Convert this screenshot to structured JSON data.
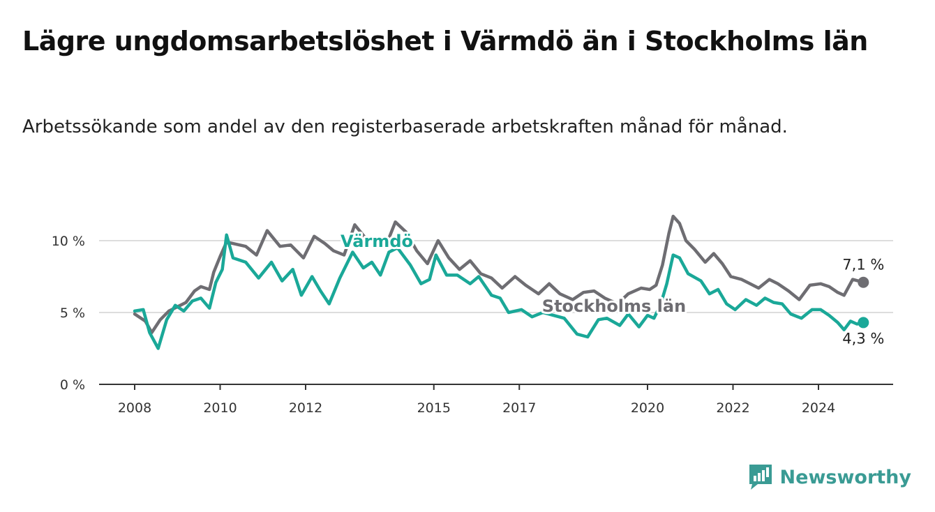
{
  "header": {
    "title": "Lägre ungdomsarbetslöshet i Värmdö än i Stockholms län",
    "subtitle": "Arbetssökande som andel av den registerbaserade arbetskraften månad för månad."
  },
  "brand": {
    "name": "Newsworthy",
    "icon": "newsworthy-logo-icon",
    "color": "#3a9b94"
  },
  "colors": {
    "varmdo": "#1aa898",
    "stockholm": "#6e6d72",
    "grid": "#dddddd",
    "axis": "#333333"
  },
  "chart_data": {
    "type": "line",
    "x_ticks": [
      "2008",
      "2010",
      "2012",
      "2015",
      "2017",
      "2020",
      "2022",
      "2024"
    ],
    "y_ticks": [
      "0 %",
      "5 %",
      "10 %"
    ],
    "ylim": [
      0,
      12
    ],
    "grid": "horizontal",
    "series": [
      {
        "name": "Värmdö",
        "key": "varmdo",
        "end_label": "4,3 %",
        "points": [
          [
            2008.0,
            5.1
          ],
          [
            2008.2,
            5.2
          ],
          [
            2008.35,
            3.6
          ],
          [
            2008.55,
            2.5
          ],
          [
            2008.75,
            4.5
          ],
          [
            2008.95,
            5.5
          ],
          [
            2009.15,
            5.1
          ],
          [
            2009.35,
            5.8
          ],
          [
            2009.55,
            6.0
          ],
          [
            2009.75,
            5.3
          ],
          [
            2009.9,
            7.1
          ],
          [
            2010.05,
            8.0
          ],
          [
            2010.15,
            10.4
          ],
          [
            2010.3,
            8.8
          ],
          [
            2010.6,
            8.5
          ],
          [
            2010.9,
            7.4
          ],
          [
            2011.2,
            8.5
          ],
          [
            2011.45,
            7.2
          ],
          [
            2011.7,
            8.0
          ],
          [
            2011.9,
            6.2
          ],
          [
            2012.15,
            7.5
          ],
          [
            2012.35,
            6.5
          ],
          [
            2012.55,
            5.6
          ],
          [
            2012.8,
            7.4
          ],
          [
            2013.1,
            9.2
          ],
          [
            2013.35,
            8.1
          ],
          [
            2013.55,
            8.5
          ],
          [
            2013.75,
            7.6
          ],
          [
            2013.95,
            9.2
          ],
          [
            2014.15,
            9.5
          ],
          [
            2014.45,
            8.3
          ],
          [
            2014.7,
            7.0
          ],
          [
            2014.9,
            7.3
          ],
          [
            2015.05,
            9.0
          ],
          [
            2015.3,
            7.6
          ],
          [
            2015.55,
            7.6
          ],
          [
            2015.85,
            7.0
          ],
          [
            2016.05,
            7.5
          ],
          [
            2016.35,
            6.2
          ],
          [
            2016.55,
            6.0
          ],
          [
            2016.75,
            5.0
          ],
          [
            2017.05,
            5.2
          ],
          [
            2017.3,
            4.7
          ],
          [
            2017.55,
            5.0
          ],
          [
            2017.8,
            4.8
          ],
          [
            2018.05,
            4.6
          ],
          [
            2018.35,
            3.5
          ],
          [
            2018.6,
            3.3
          ],
          [
            2018.85,
            4.5
          ],
          [
            2019.05,
            4.6
          ],
          [
            2019.35,
            4.1
          ],
          [
            2019.55,
            4.9
          ],
          [
            2019.8,
            4.0
          ],
          [
            2020.0,
            4.8
          ],
          [
            2020.15,
            4.6
          ],
          [
            2020.3,
            5.5
          ],
          [
            2020.45,
            7.0
          ],
          [
            2020.6,
            9.0
          ],
          [
            2020.75,
            8.8
          ],
          [
            2020.95,
            7.7
          ],
          [
            2021.25,
            7.2
          ],
          [
            2021.45,
            6.3
          ],
          [
            2021.65,
            6.6
          ],
          [
            2021.85,
            5.6
          ],
          [
            2022.05,
            5.2
          ],
          [
            2022.3,
            5.9
          ],
          [
            2022.55,
            5.5
          ],
          [
            2022.75,
            6.0
          ],
          [
            2022.95,
            5.7
          ],
          [
            2023.15,
            5.6
          ],
          [
            2023.35,
            4.9
          ],
          [
            2023.6,
            4.6
          ],
          [
            2023.85,
            5.2
          ],
          [
            2024.05,
            5.2
          ],
          [
            2024.25,
            4.8
          ],
          [
            2024.45,
            4.3
          ],
          [
            2024.6,
            3.8
          ],
          [
            2024.75,
            4.4
          ],
          [
            2024.9,
            4.2
          ],
          [
            2025.05,
            4.3
          ]
        ]
      },
      {
        "name": "Stockholms län",
        "key": "stockholm",
        "end_label": "7,1 %",
        "points": [
          [
            2008.0,
            4.9
          ],
          [
            2008.25,
            4.4
          ],
          [
            2008.4,
            3.6
          ],
          [
            2008.6,
            4.5
          ],
          [
            2008.8,
            5.1
          ],
          [
            2009.0,
            5.4
          ],
          [
            2009.2,
            5.7
          ],
          [
            2009.4,
            6.5
          ],
          [
            2009.55,
            6.8
          ],
          [
            2009.75,
            6.6
          ],
          [
            2009.85,
            7.8
          ],
          [
            2010.0,
            8.9
          ],
          [
            2010.15,
            9.9
          ],
          [
            2010.3,
            9.8
          ],
          [
            2010.6,
            9.6
          ],
          [
            2010.85,
            9.0
          ],
          [
            2011.1,
            10.7
          ],
          [
            2011.4,
            9.6
          ],
          [
            2011.65,
            9.7
          ],
          [
            2011.95,
            8.8
          ],
          [
            2012.2,
            10.3
          ],
          [
            2012.45,
            9.8
          ],
          [
            2012.65,
            9.3
          ],
          [
            2012.9,
            9.0
          ],
          [
            2013.15,
            11.1
          ],
          [
            2013.45,
            10.0
          ],
          [
            2013.7,
            10.1
          ],
          [
            2013.9,
            9.8
          ],
          [
            2014.1,
            11.3
          ],
          [
            2014.35,
            10.6
          ],
          [
            2014.6,
            9.3
          ],
          [
            2014.85,
            8.4
          ],
          [
            2015.1,
            10.0
          ],
          [
            2015.35,
            8.8
          ],
          [
            2015.6,
            8.0
          ],
          [
            2015.85,
            8.6
          ],
          [
            2016.1,
            7.7
          ],
          [
            2016.35,
            7.4
          ],
          [
            2016.6,
            6.7
          ],
          [
            2016.9,
            7.5
          ],
          [
            2017.15,
            6.9
          ],
          [
            2017.45,
            6.3
          ],
          [
            2017.7,
            7.0
          ],
          [
            2017.95,
            6.3
          ],
          [
            2018.25,
            5.9
          ],
          [
            2018.5,
            6.4
          ],
          [
            2018.75,
            6.5
          ],
          [
            2019.0,
            6.0
          ],
          [
            2019.3,
            5.6
          ],
          [
            2019.55,
            6.3
          ],
          [
            2019.85,
            6.7
          ],
          [
            2020.05,
            6.6
          ],
          [
            2020.2,
            6.9
          ],
          [
            2020.35,
            8.3
          ],
          [
            2020.5,
            10.5
          ],
          [
            2020.6,
            11.7
          ],
          [
            2020.75,
            11.2
          ],
          [
            2020.9,
            10.0
          ],
          [
            2021.1,
            9.4
          ],
          [
            2021.35,
            8.5
          ],
          [
            2021.55,
            9.1
          ],
          [
            2021.75,
            8.4
          ],
          [
            2021.95,
            7.5
          ],
          [
            2022.2,
            7.3
          ],
          [
            2022.4,
            7.0
          ],
          [
            2022.6,
            6.7
          ],
          [
            2022.85,
            7.3
          ],
          [
            2023.05,
            7.0
          ],
          [
            2023.3,
            6.5
          ],
          [
            2023.55,
            5.9
          ],
          [
            2023.8,
            6.9
          ],
          [
            2024.05,
            7.0
          ],
          [
            2024.25,
            6.8
          ],
          [
            2024.45,
            6.4
          ],
          [
            2024.6,
            6.2
          ],
          [
            2024.8,
            7.3
          ],
          [
            2025.05,
            7.1
          ]
        ]
      }
    ]
  }
}
